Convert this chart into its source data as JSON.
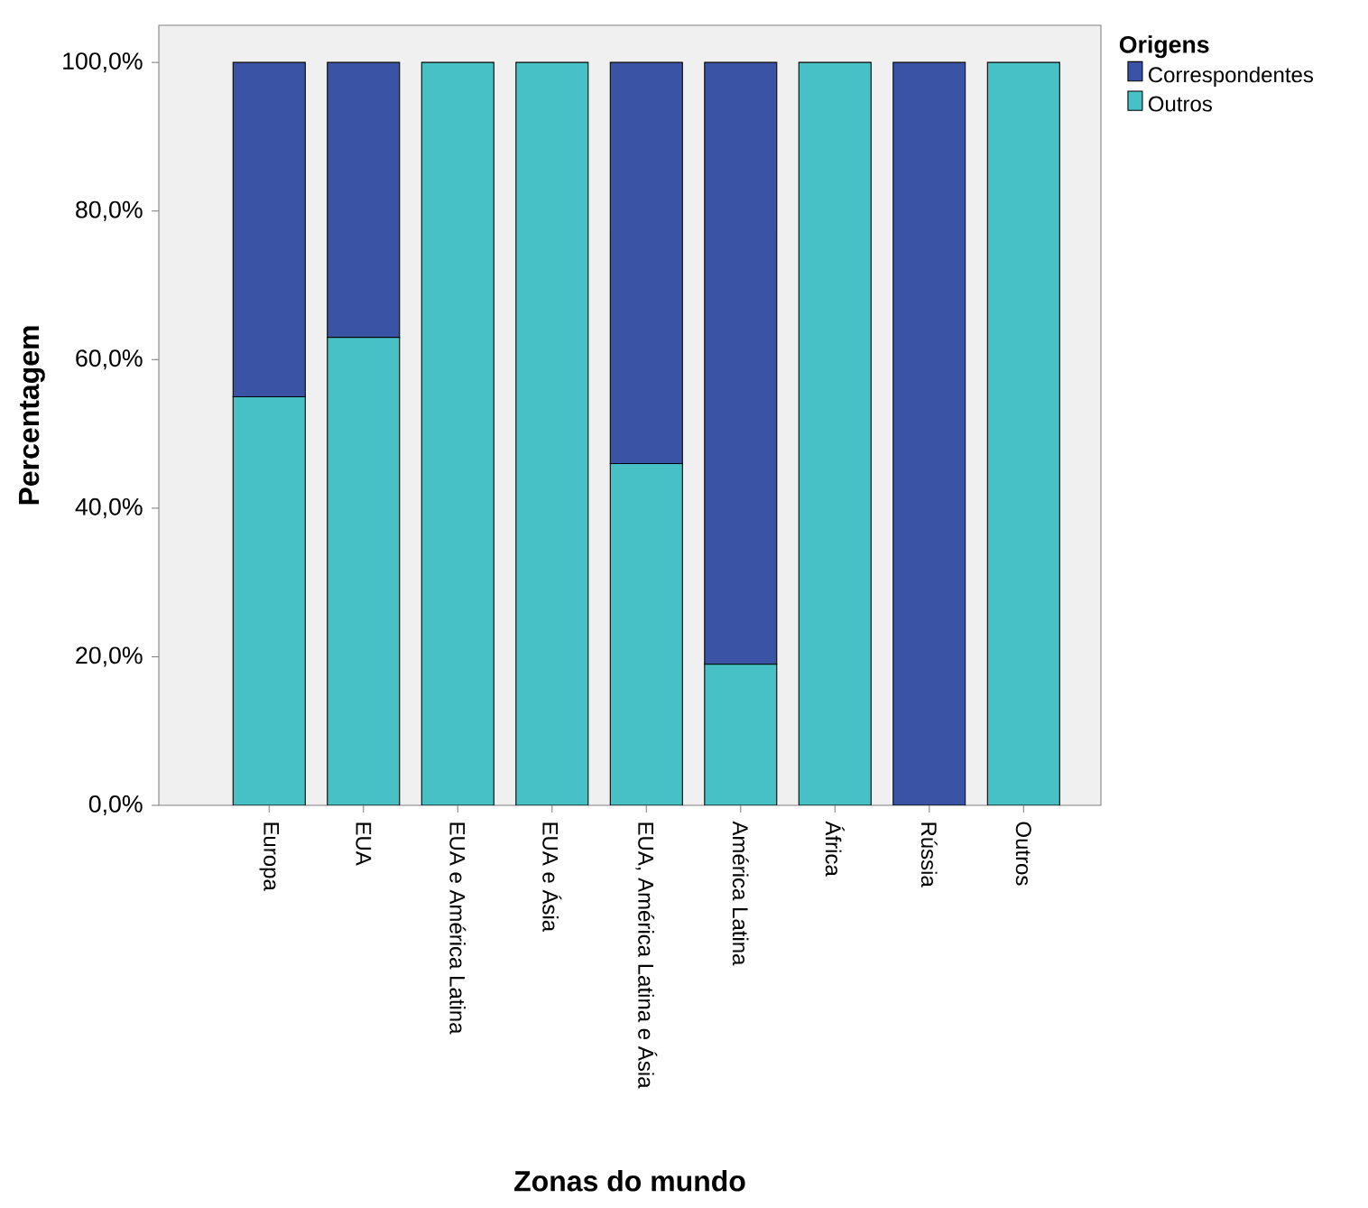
{
  "chart_data": {
    "type": "bar",
    "stacked": true,
    "xlabel": "Zonas do mundo",
    "ylabel": "Percentagem",
    "legend_title": "Origens",
    "legend": "right",
    "categories": [
      "Europa",
      "EUA",
      "EUA e América Latina",
      "EUA e Ásia",
      "EUA, América Latina e Ásia",
      "América Latina",
      "África",
      "Rússia",
      "Outros"
    ],
    "series": [
      {
        "name": "Outros",
        "color": "#47c1c5",
        "values": [
          55,
          63,
          100,
          100,
          46,
          19,
          100,
          0,
          100
        ]
      },
      {
        "name": "Correspondentes",
        "color": "#3a53a4",
        "values": [
          45,
          37,
          0,
          0,
          54,
          81,
          0,
          100,
          0
        ]
      }
    ],
    "ylim": [
      0,
      105
    ],
    "yticks": [
      {
        "value": 0,
        "label": "0,0%"
      },
      {
        "value": 20,
        "label": "20,0%"
      },
      {
        "value": 40,
        "label": "40,0%"
      },
      {
        "value": 60,
        "label": "60,0%"
      },
      {
        "value": 80,
        "label": "80,0%"
      },
      {
        "value": 100,
        "label": "100,0%"
      }
    ]
  }
}
